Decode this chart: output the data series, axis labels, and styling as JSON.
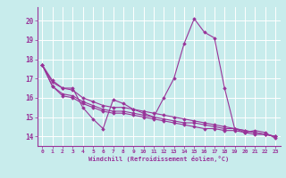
{
  "title": "",
  "xlabel": "Windchill (Refroidissement éolien,°C)",
  "ylabel": "",
  "bg_color": "#c8ecec",
  "line_color": "#993399",
  "grid_color": "#ffffff",
  "xlim": [
    -0.5,
    23.5
  ],
  "ylim": [
    13.5,
    20.7
  ],
  "xticks": [
    0,
    1,
    2,
    3,
    4,
    5,
    6,
    7,
    8,
    9,
    10,
    11,
    12,
    13,
    14,
    15,
    16,
    17,
    18,
    19,
    20,
    21,
    22,
    23
  ],
  "yticks": [
    14,
    15,
    16,
    17,
    18,
    19,
    20
  ],
  "series": [
    [
      17.7,
      16.9,
      16.5,
      16.5,
      15.5,
      14.9,
      14.4,
      15.9,
      15.7,
      15.4,
      15.2,
      15.0,
      16.0,
      17.0,
      18.8,
      20.1,
      19.4,
      19.1,
      16.5,
      14.4,
      14.2,
      14.3,
      14.2,
      13.9
    ],
    [
      17.7,
      16.6,
      16.1,
      16.0,
      15.7,
      15.5,
      15.3,
      15.2,
      15.2,
      15.1,
      15.0,
      14.9,
      14.8,
      14.7,
      14.6,
      14.5,
      14.4,
      14.4,
      14.3,
      14.3,
      14.2,
      14.1,
      14.1,
      14.0
    ],
    [
      17.7,
      16.6,
      16.2,
      16.1,
      15.8,
      15.6,
      15.4,
      15.3,
      15.3,
      15.2,
      15.1,
      15.0,
      14.9,
      14.8,
      14.7,
      14.7,
      14.6,
      14.5,
      14.4,
      14.4,
      14.3,
      14.2,
      14.1,
      14.0
    ],
    [
      17.7,
      16.8,
      16.5,
      16.4,
      16.0,
      15.8,
      15.6,
      15.5,
      15.5,
      15.4,
      15.3,
      15.2,
      15.1,
      15.0,
      14.9,
      14.8,
      14.7,
      14.6,
      14.5,
      14.4,
      14.3,
      14.2,
      14.1,
      14.0
    ]
  ]
}
